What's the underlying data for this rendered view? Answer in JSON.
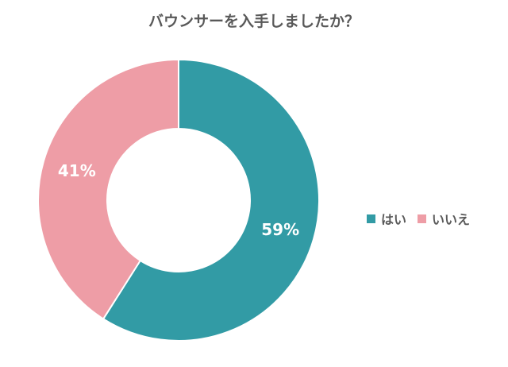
{
  "chart_data": {
    "type": "pie",
    "title": "バウンサーを入手しましたか？",
    "categories": [
      "はい",
      "いいえ"
    ],
    "values": [
      59,
      41
    ],
    "data_labels": [
      "59%",
      "41%"
    ],
    "colors": [
      "#329ba5",
      "#ee9da6"
    ],
    "donut": true,
    "legend_position": "right"
  }
}
